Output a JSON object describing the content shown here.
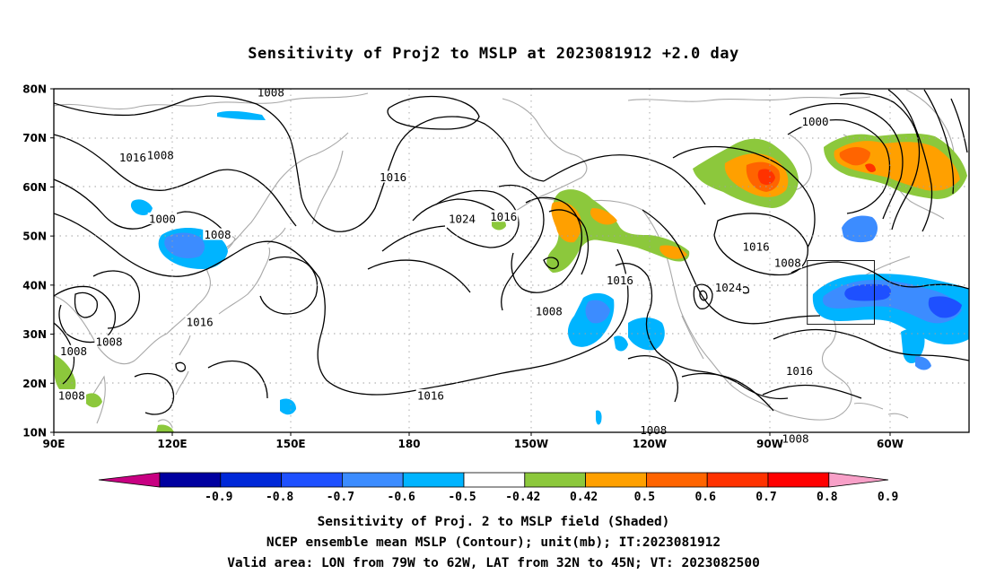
{
  "title": "Sensitivity of Proj2 to MSLP at 2023081912 +2.0 day",
  "map": {
    "lon_labels": [
      "90E",
      "120E",
      "150E",
      "180",
      "150W",
      "120W",
      "90W",
      "60W"
    ],
    "lat_labels": [
      "80N",
      "70N",
      "60N",
      "50N",
      "40N",
      "30N",
      "20N",
      "10N"
    ],
    "extent": {
      "lon_min": 90,
      "lon_max": 322,
      "lat_min": 10,
      "lat_max": 80
    },
    "grid": "dotted",
    "coastline_color": "#a8a8a8",
    "contour_color": "#000000",
    "contour_labels": [
      {
        "text": "1008",
        "lon": 145,
        "lat": 79.3
      },
      {
        "text": "1016",
        "lon": 110,
        "lat": 66
      },
      {
        "text": "1008",
        "lon": 117,
        "lat": 66.5
      },
      {
        "text": "1016",
        "lon": 176,
        "lat": 62
      },
      {
        "text": "1000",
        "lon": 117.5,
        "lat": 53.5
      },
      {
        "text": "1008",
        "lon": 131.5,
        "lat": 50.3
      },
      {
        "text": "1024",
        "lon": 193.5,
        "lat": 53.5
      },
      {
        "text": "1016",
        "lon": 204,
        "lat": 54
      },
      {
        "text": "1000",
        "lon": 283,
        "lat": 73.3
      },
      {
        "text": "1016",
        "lon": 268,
        "lat": 47.8
      },
      {
        "text": "1008",
        "lon": 276,
        "lat": 44.5
      },
      {
        "text": "1024",
        "lon": 261,
        "lat": 39.5
      },
      {
        "text": "1016",
        "lon": 233.5,
        "lat": 41
      },
      {
        "text": "1008",
        "lon": 215.5,
        "lat": 34.7
      },
      {
        "text": "1016",
        "lon": 127,
        "lat": 32.5
      },
      {
        "text": "1008",
        "lon": 104,
        "lat": 28.5
      },
      {
        "text": "1008",
        "lon": 95,
        "lat": 26.5
      },
      {
        "text": "1016",
        "lon": 185.5,
        "lat": 17.5
      },
      {
        "text": "1008",
        "lon": 94.5,
        "lat": 17.5
      },
      {
        "text": "1016",
        "lon": 279,
        "lat": 22.5
      },
      {
        "text": "1008",
        "lon": 242,
        "lat": 10.5
      },
      {
        "text": "1008",
        "lon": 278,
        "lat": 8.7
      }
    ],
    "valid_area": {
      "lon_from": -79,
      "lon_to": -62,
      "lat_from": 32,
      "lat_to": 45
    }
  },
  "colorbar": {
    "labels": [
      "-0.9",
      "-0.8",
      "-0.7",
      "-0.6",
      "-0.5",
      "-0.42",
      "0.42",
      "0.5",
      "0.6",
      "0.7",
      "0.8",
      "0.9"
    ],
    "colors": [
      "#c80082",
      "#0000a0",
      "#0028d8",
      "#1e50ff",
      "#3c8cff",
      "#00b4ff",
      "#ffffff",
      "#8cc83c",
      "#ffa000",
      "#ff6400",
      "#ff3200",
      "#ff0000",
      "#f8a0c8"
    ]
  },
  "captions": [
    "Sensitivity of Proj. 2 to MSLP field (Shaded)",
    "NCEP ensemble mean MSLP (Contour); unit(mb); IT:2023081912",
    "Valid area: LON from 79W to 62W, LAT from 32N to 45N; VT: 2023082500"
  ]
}
